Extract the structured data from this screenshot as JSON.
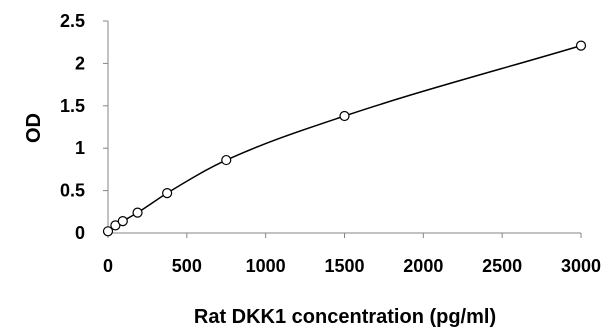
{
  "chart_data": {
    "type": "scatter",
    "title": "",
    "xlabel": "Rat DKK1 concentration (pg/ml)",
    "ylabel": "OD",
    "xlim": [
      0,
      3000
    ],
    "ylim": [
      0,
      2.5
    ],
    "x_ticks": [
      "0",
      "500",
      "1000",
      "1500",
      "2000",
      "2500",
      "3000"
    ],
    "y_ticks": [
      "0",
      "0.5",
      "1",
      "1.5",
      "2",
      "2.5"
    ],
    "grid": false,
    "legend": "none",
    "series": [
      {
        "x": [
          0,
          46.9,
          93.8,
          187.5,
          375,
          750,
          1500,
          3000
        ],
        "y": [
          0.02,
          0.09,
          0.14,
          0.24,
          0.47,
          0.86,
          1.38,
          2.21
        ],
        "marker": "open-circle",
        "fit_line": true
      }
    ],
    "colors": {
      "line": "#000000",
      "marker": "#000000"
    }
  }
}
